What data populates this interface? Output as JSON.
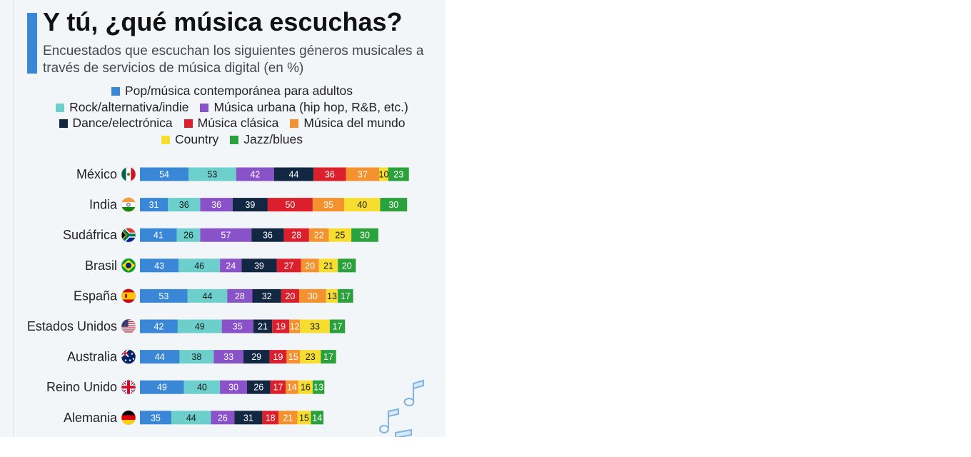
{
  "header": {
    "title": "Y tú, ¿qué música escuchas?",
    "subtitle": "Encuestados que escuchan los siguientes géneros musicales a través de servicios de música digital (en %)"
  },
  "colors": {
    "accent": "#3a87d8",
    "background": "#f3f6f9"
  },
  "chart_data": {
    "type": "bar",
    "orientation": "horizontal",
    "stacked": true,
    "title": "Y tú, ¿qué música escuchas?",
    "subtitle": "Encuestados que escuchan los siguientes géneros musicales a través de servicios de música digital (en %)",
    "legend_position": "top",
    "grid": false,
    "categories": [
      "México",
      "India",
      "Sudáfrica",
      "Brasil",
      "España",
      "Estados Unidos",
      "Australia",
      "Reino Unido",
      "Alemania"
    ],
    "flag_icons": [
      "mexico-flag-icon",
      "india-flag-icon",
      "south-africa-flag-icon",
      "brazil-flag-icon",
      "spain-flag-icon",
      "usa-flag-icon",
      "australia-flag-icon",
      "uk-flag-icon",
      "germany-flag-icon"
    ],
    "series": [
      {
        "name": "Pop/música contemporánea para adultos",
        "color": "#3a87d8",
        "label_color": "#ffffff",
        "values": [
          54,
          31,
          41,
          43,
          53,
          42,
          44,
          49,
          35
        ]
      },
      {
        "name": "Rock/alternativa/indie",
        "color": "#6ccfcb",
        "label_color": "#1a1a1a",
        "values": [
          53,
          36,
          26,
          46,
          44,
          49,
          38,
          40,
          44
        ]
      },
      {
        "name": "Música urbana (hip hop, R&B, etc.)",
        "color": "#8a52c9",
        "label_color": "#ffffff",
        "values": [
          42,
          36,
          57,
          24,
          28,
          35,
          33,
          30,
          26
        ]
      },
      {
        "name": "Dance/electrónica",
        "color": "#112742",
        "label_color": "#ffffff",
        "values": [
          44,
          39,
          36,
          39,
          32,
          21,
          29,
          26,
          31
        ]
      },
      {
        "name": "Música clásica",
        "color": "#dc1f2c",
        "label_color": "#ffffff",
        "values": [
          36,
          50,
          28,
          27,
          20,
          19,
          19,
          17,
          18
        ]
      },
      {
        "name": "Música del mundo",
        "color": "#f3922f",
        "label_color": "#ffffff",
        "values": [
          37,
          35,
          22,
          20,
          30,
          12,
          15,
          14,
          21
        ]
      },
      {
        "name": "Country",
        "color": "#f7dd2f",
        "label_color": "#1a1a1a",
        "values": [
          10,
          40,
          25,
          21,
          13,
          33,
          23,
          16,
          15
        ]
      },
      {
        "name": "Jazz/blues",
        "color": "#2ba13c",
        "label_color": "#ffffff",
        "values": [
          23,
          30,
          30,
          20,
          17,
          17,
          17,
          13,
          14
        ]
      }
    ]
  }
}
